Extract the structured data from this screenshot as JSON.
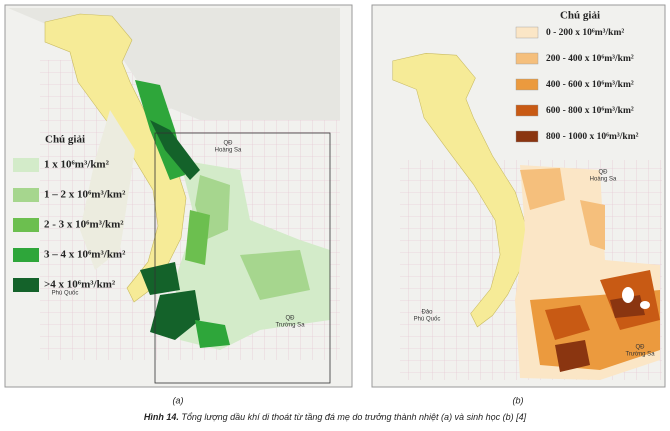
{
  "caption": {
    "number": "Hình 14.",
    "text": "Tổng lượng dầu khí di thoát từ tầng đá mẹ do trưởng thành nhiệt (a) và sinh học (b) [4]"
  },
  "maps": [
    {
      "label": "(a)",
      "legend": {
        "title": "Chú giải",
        "items": [
          {
            "label": "1 x 10⁶m³/km²",
            "color": "#d3ebc9"
          },
          {
            "label": "1 – 2 x 10⁶m³/km²",
            "color": "#a6d68e"
          },
          {
            "label": "2 - 3 x 10⁶m³/km²",
            "color": "#6cbf4f"
          },
          {
            "label": "3 – 4 x 10⁶m³/km²",
            "color": "#2ea63a"
          },
          {
            "label": ">4 x 10⁶m³/km²",
            "color": "#14622a"
          }
        ]
      },
      "places": [
        [
          "QĐ",
          "Hoàng Sa"
        ],
        [
          "Phú Quốc"
        ],
        [
          "QĐ",
          "Trường Sa"
        ]
      ]
    },
    {
      "label": "(b)",
      "legend": {
        "title": "Chú giải",
        "items": [
          {
            "label": "0 - 200 x 10⁶m³/km²",
            "color": "#fbe6c6"
          },
          {
            "label": "200 - 400 x 10⁶m³/km²",
            "color": "#f5bf7c"
          },
          {
            "label": "400 - 600 x 10⁶m³/km²",
            "color": "#eb9a3e"
          },
          {
            "label": "600 - 800 x 10⁶m³/km²",
            "color": "#c85a14"
          },
          {
            "label": "800 - 1000 x 10⁶m³/km²",
            "color": "#8a3510"
          }
        ]
      },
      "places": [
        [
          "QĐ",
          "Hoàng Sa"
        ],
        [
          "Đảo",
          "Phú Quốc"
        ],
        [
          "QĐ",
          "Trường Sa"
        ]
      ]
    }
  ]
}
